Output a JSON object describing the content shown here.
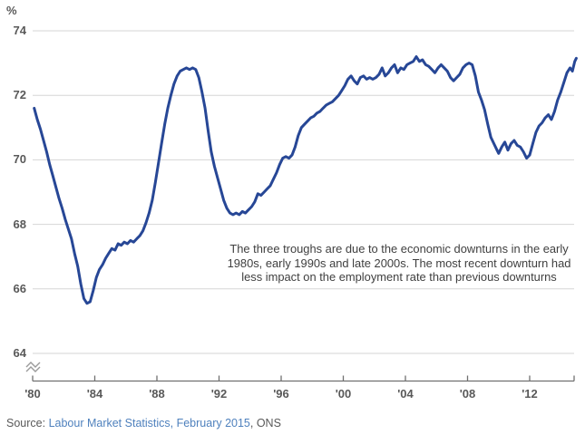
{
  "chart_data": {
    "type": "line",
    "title": "",
    "ylabel": "%",
    "xlabel": "",
    "ylim_visible": [
      64,
      74
    ],
    "y_axis_break": true,
    "grid": "horizontal",
    "y_ticks": [
      74,
      72,
      70,
      68,
      66,
      64
    ],
    "x_ticks": [
      {
        "year": 1980,
        "label": "'80"
      },
      {
        "year": 1984,
        "label": "'84"
      },
      {
        "year": 1988,
        "label": "'88"
      },
      {
        "year": 1992,
        "label": "'92"
      },
      {
        "year": 1996,
        "label": "'96"
      },
      {
        "year": 2000,
        "label": "'00"
      },
      {
        "year": 2004,
        "label": "'04"
      },
      {
        "year": 2008,
        "label": "'08"
      },
      {
        "year": 2012,
        "label": "'12"
      }
    ],
    "x_range": [
      1980,
      2015
    ],
    "line_color": "#274796",
    "gridline_color": "#d6d6d6",
    "axis_color": "#707070",
    "tick_label_color": "#595959",
    "series": [
      {
        "points": [
          [
            1980.1,
            71.6
          ],
          [
            1980.3,
            71.25
          ],
          [
            1980.5,
            70.95
          ],
          [
            1980.7,
            70.6
          ],
          [
            1980.9,
            70.25
          ],
          [
            1981.1,
            69.85
          ],
          [
            1981.3,
            69.5
          ],
          [
            1981.5,
            69.15
          ],
          [
            1981.7,
            68.8
          ],
          [
            1981.9,
            68.5
          ],
          [
            1982.1,
            68.15
          ],
          [
            1982.3,
            67.85
          ],
          [
            1982.5,
            67.55
          ],
          [
            1982.7,
            67.1
          ],
          [
            1982.9,
            66.7
          ],
          [
            1983.1,
            66.15
          ],
          [
            1983.3,
            65.7
          ],
          [
            1983.5,
            65.55
          ],
          [
            1983.7,
            65.6
          ],
          [
            1983.9,
            65.95
          ],
          [
            1984.1,
            66.35
          ],
          [
            1984.3,
            66.6
          ],
          [
            1984.5,
            66.75
          ],
          [
            1984.7,
            66.95
          ],
          [
            1984.9,
            67.1
          ],
          [
            1985.1,
            67.25
          ],
          [
            1985.3,
            67.2
          ],
          [
            1985.5,
            67.4
          ],
          [
            1985.7,
            67.35
          ],
          [
            1985.9,
            67.45
          ],
          [
            1986.1,
            67.4
          ],
          [
            1986.3,
            67.5
          ],
          [
            1986.5,
            67.45
          ],
          [
            1986.7,
            67.55
          ],
          [
            1986.9,
            67.65
          ],
          [
            1987.1,
            67.8
          ],
          [
            1987.3,
            68.05
          ],
          [
            1987.5,
            68.35
          ],
          [
            1987.7,
            68.75
          ],
          [
            1987.9,
            69.3
          ],
          [
            1988.1,
            69.9
          ],
          [
            1988.3,
            70.5
          ],
          [
            1988.5,
            71.1
          ],
          [
            1988.7,
            71.6
          ],
          [
            1988.9,
            72.0
          ],
          [
            1989.1,
            72.35
          ],
          [
            1989.3,
            72.6
          ],
          [
            1989.5,
            72.75
          ],
          [
            1989.7,
            72.8
          ],
          [
            1989.9,
            72.85
          ],
          [
            1990.1,
            72.8
          ],
          [
            1990.3,
            72.85
          ],
          [
            1990.5,
            72.8
          ],
          [
            1990.7,
            72.55
          ],
          [
            1990.9,
            72.1
          ],
          [
            1991.1,
            71.6
          ],
          [
            1991.3,
            70.9
          ],
          [
            1991.5,
            70.25
          ],
          [
            1991.7,
            69.8
          ],
          [
            1991.9,
            69.45
          ],
          [
            1992.1,
            69.1
          ],
          [
            1992.3,
            68.75
          ],
          [
            1992.5,
            68.5
          ],
          [
            1992.7,
            68.35
          ],
          [
            1992.9,
            68.3
          ],
          [
            1993.1,
            68.35
          ],
          [
            1993.3,
            68.3
          ],
          [
            1993.5,
            68.4
          ],
          [
            1993.7,
            68.35
          ],
          [
            1993.9,
            68.45
          ],
          [
            1994.1,
            68.55
          ],
          [
            1994.3,
            68.7
          ],
          [
            1994.5,
            68.95
          ],
          [
            1994.7,
            68.9
          ],
          [
            1994.9,
            69.0
          ],
          [
            1995.1,
            69.1
          ],
          [
            1995.3,
            69.2
          ],
          [
            1995.5,
            69.4
          ],
          [
            1995.7,
            69.6
          ],
          [
            1995.9,
            69.85
          ],
          [
            1996.1,
            70.05
          ],
          [
            1996.3,
            70.1
          ],
          [
            1996.5,
            70.05
          ],
          [
            1996.7,
            70.15
          ],
          [
            1996.9,
            70.4
          ],
          [
            1997.1,
            70.75
          ],
          [
            1997.3,
            71.0
          ],
          [
            1997.5,
            71.1
          ],
          [
            1997.7,
            71.2
          ],
          [
            1997.9,
            71.3
          ],
          [
            1998.1,
            71.35
          ],
          [
            1998.3,
            71.45
          ],
          [
            1998.5,
            71.5
          ],
          [
            1998.7,
            71.6
          ],
          [
            1998.9,
            71.7
          ],
          [
            1999.1,
            71.75
          ],
          [
            1999.3,
            71.8
          ],
          [
            1999.5,
            71.9
          ],
          [
            1999.7,
            72.0
          ],
          [
            1999.9,
            72.15
          ],
          [
            2000.1,
            72.3
          ],
          [
            2000.3,
            72.5
          ],
          [
            2000.5,
            72.6
          ],
          [
            2000.7,
            72.45
          ],
          [
            2000.9,
            72.35
          ],
          [
            2001.1,
            72.55
          ],
          [
            2001.3,
            72.6
          ],
          [
            2001.5,
            72.5
          ],
          [
            2001.7,
            72.55
          ],
          [
            2001.9,
            72.5
          ],
          [
            2002.1,
            72.55
          ],
          [
            2002.3,
            72.65
          ],
          [
            2002.5,
            72.85
          ],
          [
            2002.7,
            72.6
          ],
          [
            2002.9,
            72.7
          ],
          [
            2003.1,
            72.85
          ],
          [
            2003.3,
            72.95
          ],
          [
            2003.5,
            72.7
          ],
          [
            2003.7,
            72.85
          ],
          [
            2003.9,
            72.8
          ],
          [
            2004.1,
            72.95
          ],
          [
            2004.3,
            73.0
          ],
          [
            2004.5,
            73.05
          ],
          [
            2004.7,
            73.2
          ],
          [
            2004.9,
            73.05
          ],
          [
            2005.1,
            73.1
          ],
          [
            2005.3,
            72.95
          ],
          [
            2005.5,
            72.9
          ],
          [
            2005.7,
            72.8
          ],
          [
            2005.9,
            72.7
          ],
          [
            2006.1,
            72.85
          ],
          [
            2006.3,
            72.95
          ],
          [
            2006.5,
            72.85
          ],
          [
            2006.7,
            72.75
          ],
          [
            2006.9,
            72.55
          ],
          [
            2007.1,
            72.45
          ],
          [
            2007.3,
            72.55
          ],
          [
            2007.5,
            72.65
          ],
          [
            2007.7,
            72.85
          ],
          [
            2007.9,
            72.95
          ],
          [
            2008.1,
            73.0
          ],
          [
            2008.3,
            72.95
          ],
          [
            2008.5,
            72.6
          ],
          [
            2008.7,
            72.1
          ],
          [
            2008.9,
            71.85
          ],
          [
            2009.1,
            71.55
          ],
          [
            2009.3,
            71.1
          ],
          [
            2009.5,
            70.7
          ],
          [
            2009.7,
            70.5
          ],
          [
            2009.9,
            70.3
          ],
          [
            2010.0,
            70.2
          ],
          [
            2010.2,
            70.4
          ],
          [
            2010.4,
            70.55
          ],
          [
            2010.6,
            70.3
          ],
          [
            2010.8,
            70.5
          ],
          [
            2011.0,
            70.6
          ],
          [
            2011.2,
            70.45
          ],
          [
            2011.4,
            70.4
          ],
          [
            2011.6,
            70.25
          ],
          [
            2011.8,
            70.05
          ],
          [
            2012.0,
            70.15
          ],
          [
            2012.2,
            70.5
          ],
          [
            2012.4,
            70.85
          ],
          [
            2012.6,
            71.05
          ],
          [
            2012.8,
            71.15
          ],
          [
            2013.0,
            71.3
          ],
          [
            2013.2,
            71.4
          ],
          [
            2013.4,
            71.25
          ],
          [
            2013.6,
            71.5
          ],
          [
            2013.8,
            71.85
          ],
          [
            2014.0,
            72.1
          ],
          [
            2014.2,
            72.4
          ],
          [
            2014.4,
            72.7
          ],
          [
            2014.6,
            72.85
          ],
          [
            2014.75,
            72.75
          ],
          [
            2014.9,
            73.05
          ],
          [
            2015.0,
            73.15
          ]
        ]
      }
    ]
  },
  "annotation": {
    "lines": [
      "The three troughs are due to the economic downturns in the early",
      "1980s, early 1990s and late 2000s. The most recent downturn had",
      "less impact on the employment rate than previous downturns"
    ]
  },
  "source": {
    "prefix": "Source: ",
    "link_text": "Labour Market Statistics, February 2015",
    "suffix": ", ONS"
  }
}
